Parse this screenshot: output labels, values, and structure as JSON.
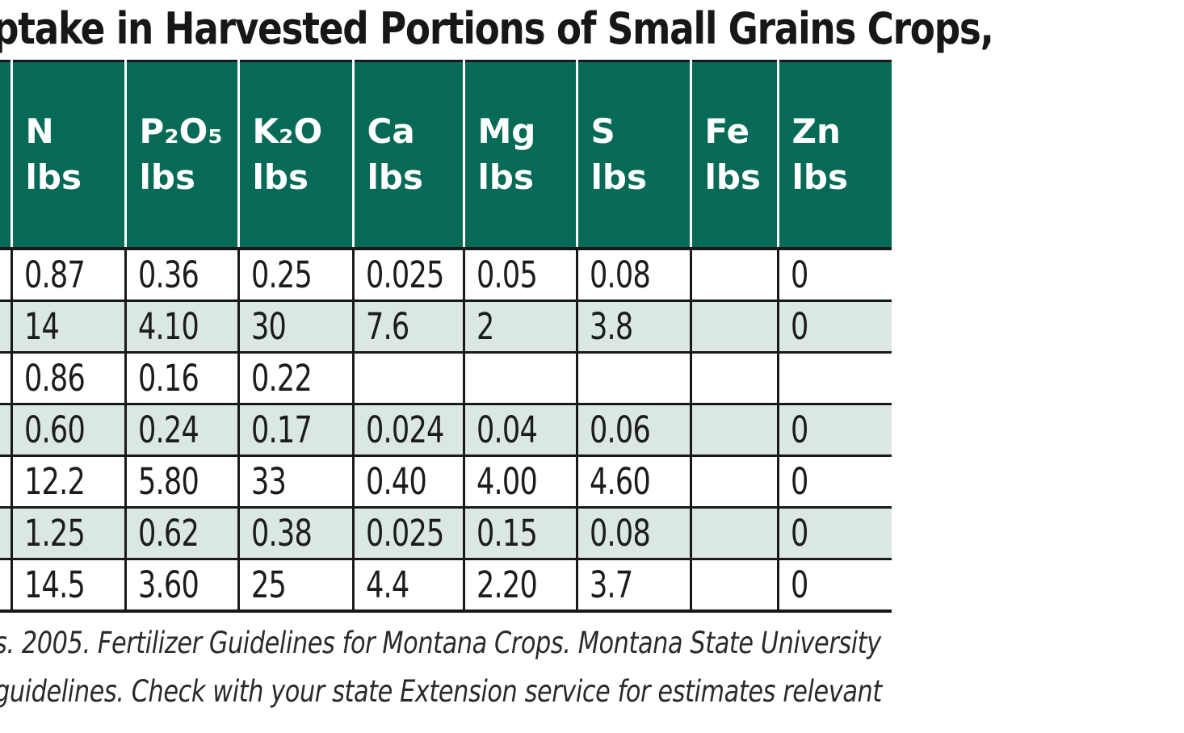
{
  "title": "ptake in Harvested Portions of Small Grains Crops,",
  "colors": {
    "header_green": "#066a57",
    "row_alt_green": "#dbe7e2",
    "border_black": "#191919",
    "header_text": "#ffffff"
  },
  "table": {
    "columns": [
      {
        "element": "",
        "unit": ""
      },
      {
        "element": "N",
        "unit": "lbs"
      },
      {
        "element": "P₂O₅",
        "unit": "lbs"
      },
      {
        "element": "K₂O",
        "unit": "lbs"
      },
      {
        "element": "Ca",
        "unit": "lbs"
      },
      {
        "element": "Mg",
        "unit": "lbs"
      },
      {
        "element": "S",
        "unit": "lbs"
      },
      {
        "element": "Fe",
        "unit": "lbs"
      },
      {
        "element": "Zn",
        "unit": "lbs"
      }
    ],
    "rows": [
      [
        "",
        "0.87",
        "0.36",
        "0.25",
        "0.025",
        "0.05",
        "0.08",
        "",
        "0"
      ],
      [
        "",
        "14",
        "4.10",
        "30",
        "7.6",
        "2",
        "3.8",
        "",
        "0"
      ],
      [
        "",
        "0.86",
        "0.16",
        "0.22",
        "",
        "",
        "",
        "",
        ""
      ],
      [
        "",
        "0.60",
        "0.24",
        "0.17",
        "0.024",
        "0.04",
        "0.06",
        "",
        "0"
      ],
      [
        "",
        "12.2",
        "5.80",
        "33",
        "0.40",
        "4.00",
        "4.60",
        "",
        "0"
      ],
      [
        "",
        "1.25",
        "0.62",
        "0.38",
        "0.025",
        "0.15",
        "0.08",
        "",
        "0"
      ],
      [
        "",
        "14.5",
        "3.60",
        "25",
        "4.4",
        "2.20",
        "3.7",
        "",
        "0"
      ]
    ]
  },
  "footer": {
    "line1": "s. 2005. Fertilizer Guidelines for Montana Crops. Montana State University",
    "line2": "guidelines. Check with your state Extension service for estimates relevant"
  }
}
